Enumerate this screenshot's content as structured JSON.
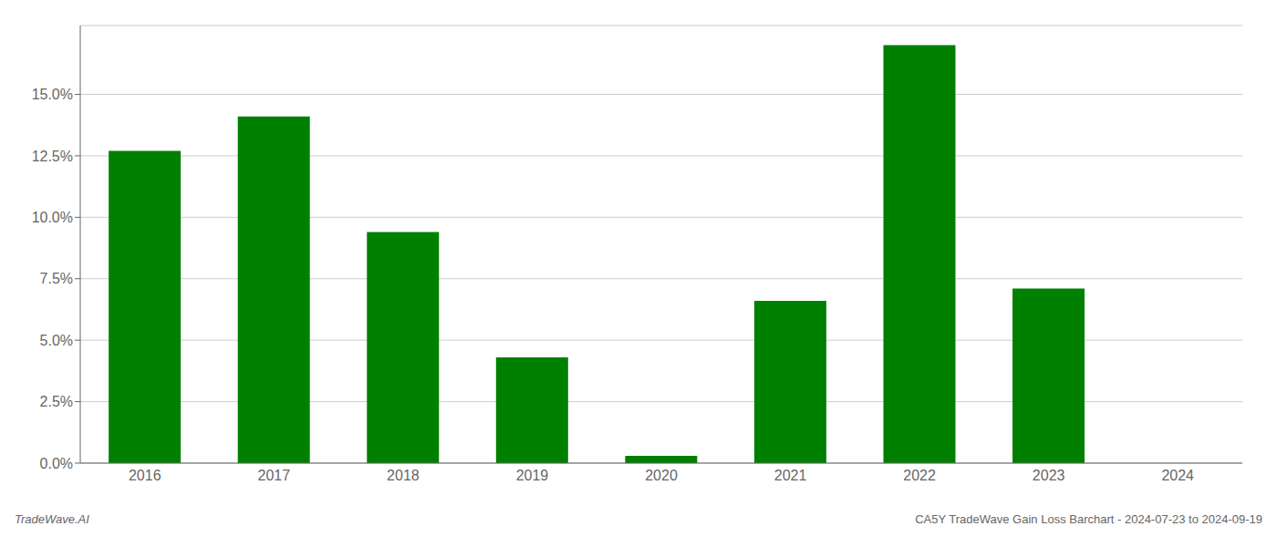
{
  "chart_data": {
    "type": "bar",
    "categories": [
      "2016",
      "2017",
      "2018",
      "2019",
      "2020",
      "2021",
      "2022",
      "2023",
      "2024"
    ],
    "values": [
      0.127,
      0.141,
      0.094,
      0.043,
      0.003,
      0.066,
      0.17,
      0.071,
      0.0
    ],
    "color": "#008000",
    "ylim": [
      0,
      0.178
    ],
    "yticks": [
      {
        "value": 0.0,
        "label": "0.0%"
      },
      {
        "value": 0.025,
        "label": "2.5%"
      },
      {
        "value": 0.05,
        "label": "5.0%"
      },
      {
        "value": 0.075,
        "label": "7.5%"
      },
      {
        "value": 0.1,
        "label": "10.0%"
      },
      {
        "value": 0.125,
        "label": "12.5%"
      },
      {
        "value": 0.15,
        "label": "15.0%"
      }
    ],
    "grid": true,
    "annotations": [
      "TradeWave.AI",
      "CA5Y TradeWave Gain Loss Barchart - 2024-07-23 to 2024-09-19"
    ]
  }
}
